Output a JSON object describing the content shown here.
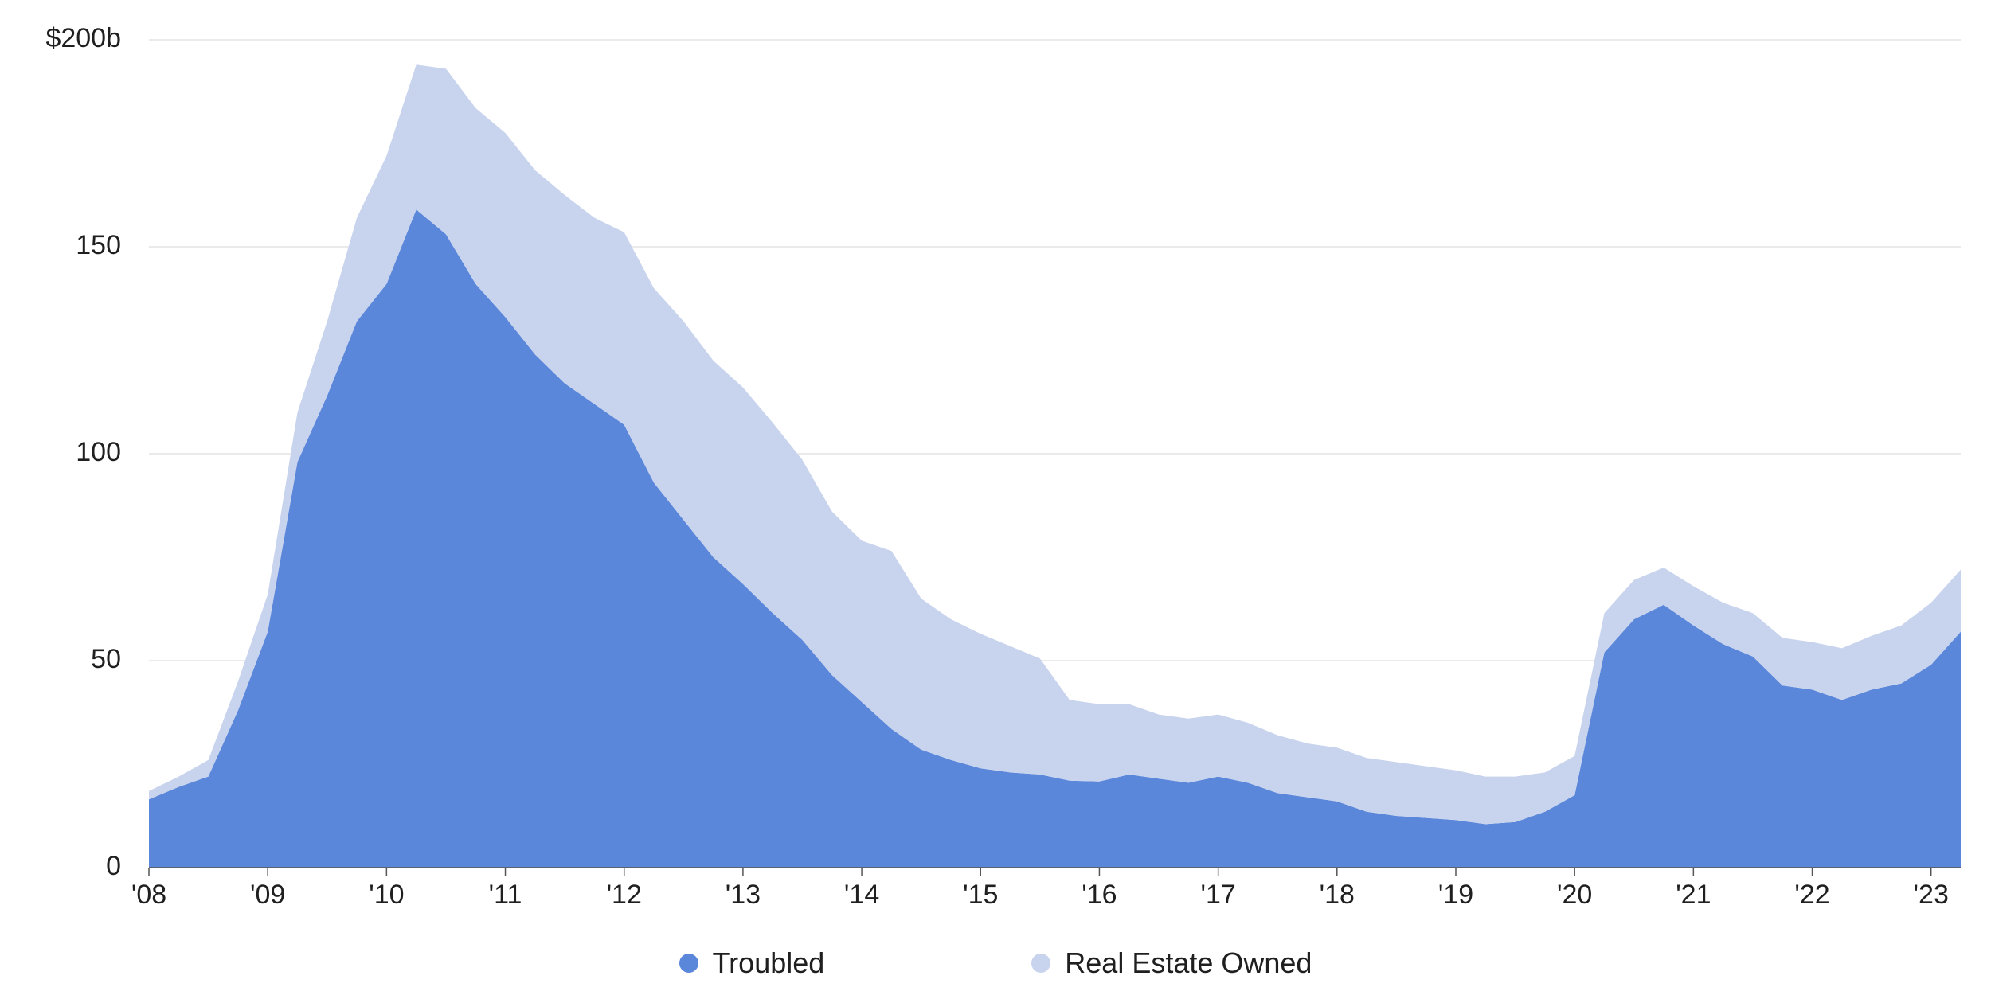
{
  "chart_data": {
    "type": "area",
    "stacked": true,
    "title": "",
    "xlabel": "",
    "ylabel": "",
    "ylim": [
      0,
      200
    ],
    "y_ticks": [
      {
        "value": 0,
        "label": "0"
      },
      {
        "value": 50,
        "label": "50"
      },
      {
        "value": 100,
        "label": "100"
      },
      {
        "value": 150,
        "label": "150"
      },
      {
        "value": 200,
        "label": "$200b"
      }
    ],
    "x_ticks": [
      {
        "value": 2008,
        "label": "'08"
      },
      {
        "value": 2009,
        "label": "'09"
      },
      {
        "value": 2010,
        "label": "'10"
      },
      {
        "value": 2011,
        "label": "'11"
      },
      {
        "value": 2012,
        "label": "'12"
      },
      {
        "value": 2013,
        "label": "'13"
      },
      {
        "value": 2014,
        "label": "'14"
      },
      {
        "value": 2015,
        "label": "'15"
      },
      {
        "value": 2016,
        "label": "'16"
      },
      {
        "value": 2017,
        "label": "'17"
      },
      {
        "value": 2018,
        "label": "'18"
      },
      {
        "value": 2019,
        "label": "'19"
      },
      {
        "value": 2020,
        "label": "'20"
      },
      {
        "value": 2021,
        "label": "'21"
      },
      {
        "value": 2022,
        "label": "'22"
      },
      {
        "value": 2023,
        "label": "'23"
      }
    ],
    "xlim": [
      2008,
      2023.25
    ],
    "x": [
      2008,
      2008.25,
      2008.5,
      2008.75,
      2009,
      2009.25,
      2009.5,
      2009.75,
      2010,
      2010.25,
      2010.5,
      2010.75,
      2011,
      2011.25,
      2011.5,
      2011.75,
      2012,
      2012.25,
      2012.5,
      2012.75,
      2013,
      2013.25,
      2013.5,
      2013.75,
      2014,
      2014.25,
      2014.5,
      2014.75,
      2015,
      2015.25,
      2015.5,
      2015.75,
      2016,
      2016.25,
      2016.5,
      2016.75,
      2017,
      2017.25,
      2017.5,
      2017.75,
      2018,
      2018.25,
      2018.5,
      2018.75,
      2019,
      2019.25,
      2019.5,
      2019.75,
      2020,
      2020.25,
      2020.5,
      2020.75,
      2021,
      2021.25,
      2021.5,
      2021.75,
      2022,
      2022.25,
      2022.5,
      2022.75,
      2023,
      2023.25
    ],
    "series": [
      {
        "name": "Troubled",
        "color": "#5b87db",
        "values": [
          16.5,
          19.5,
          22,
          38,
          57,
          98,
          114,
          132,
          141,
          159,
          153,
          141,
          133,
          124,
          117,
          112,
          107,
          93,
          84,
          75,
          68.5,
          61.5,
          55,
          46.5,
          40,
          33.5,
          28.5,
          26,
          24,
          23,
          22.5,
          21,
          20.8,
          22.5,
          21.5,
          20.5,
          22,
          20.5,
          18,
          17,
          16,
          13.5,
          12.5,
          12,
          11.5,
          10.5,
          11,
          13.5,
          17.5,
          52,
          60,
          63.5,
          58.5,
          54,
          51,
          44,
          43,
          40.5,
          43,
          44.5,
          49,
          57
        ]
      },
      {
        "name": "Real Estate Owned",
        "color": "#c8d3ed",
        "values": [
          2,
          2.5,
          4,
          7,
          9,
          12,
          18,
          25,
          31,
          35,
          40,
          42.5,
          44.5,
          44.5,
          45.5,
          45,
          46.5,
          47,
          48,
          47.5,
          47.5,
          46,
          43.5,
          39.5,
          39,
          43,
          36.5,
          34,
          32.5,
          30.5,
          28,
          19.5,
          18.7,
          17,
          15.5,
          15.5,
          15,
          14.5,
          14,
          13,
          13,
          13,
          13,
          12.5,
          12,
          11.5,
          11,
          9.5,
          9.5,
          9.5,
          9.5,
          9,
          9.5,
          10,
          10.5,
          11.5,
          11.5,
          12.5,
          13,
          14,
          15,
          15
        ]
      }
    ]
  },
  "legend": {
    "items": [
      {
        "label": "Troubled",
        "color": "#5b87db"
      },
      {
        "label": "Real Estate Owned",
        "color": "#c8d3ed"
      }
    ]
  }
}
